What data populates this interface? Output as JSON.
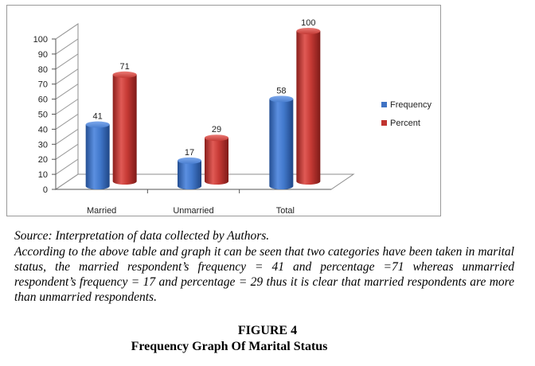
{
  "chart_data": {
    "type": "bar",
    "style": "3d-cylinder",
    "categories": [
      "Married",
      "Unmarried",
      "Total"
    ],
    "series": [
      {
        "name": "Frequency",
        "values": [
          41,
          17,
          58
        ],
        "color": "#3f73c4"
      },
      {
        "name": "Percent",
        "values": [
          71,
          29,
          100
        ],
        "color": "#c0332f"
      }
    ],
    "ylim": [
      0,
      100
    ],
    "yticks": [
      "0",
      "10",
      "20",
      "30",
      "40",
      "50",
      "60",
      "70",
      "80",
      "90",
      "100"
    ],
    "grid": false,
    "legend_position": "right"
  },
  "caption": {
    "source": "Source: Interpretation of data collected by Authors.",
    "text": "According to the above table and graph it can be seen that two categories have been taken in marital status, the married respondent’s frequency = 41 and percentage =71 whereas unmarried respondent’s frequency = 17 and percentage = 29 thus it is clear that married respondents are more than unmarried respondents.",
    "figure_number": "FIGURE 4",
    "figure_title": "Frequency Graph Of Marital Status"
  }
}
